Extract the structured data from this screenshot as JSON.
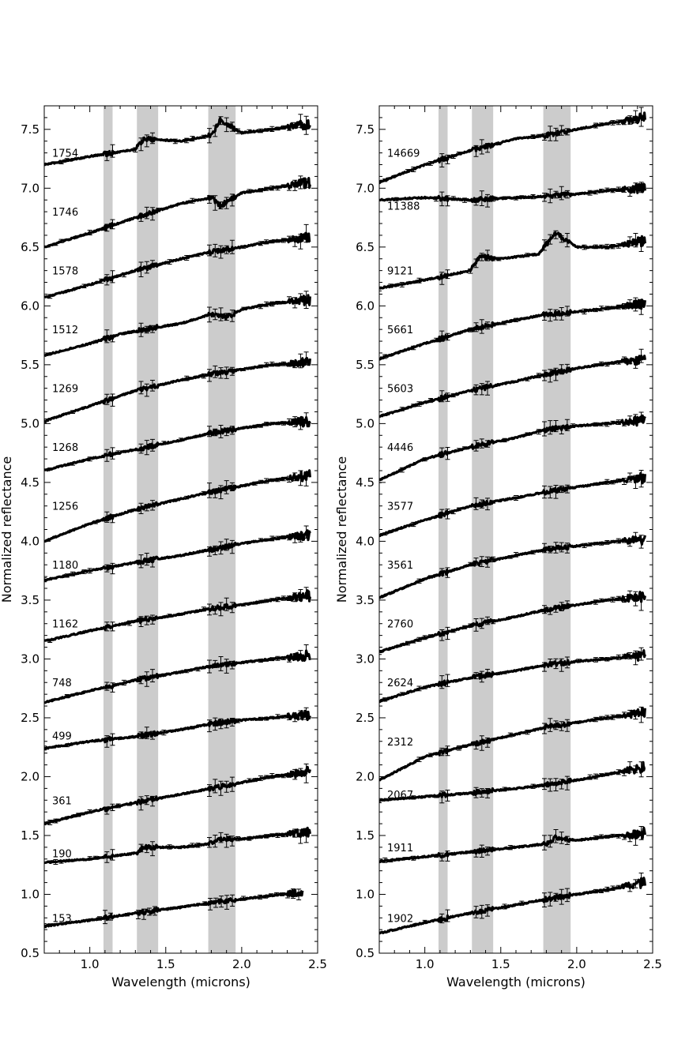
{
  "chart_data": [
    {
      "type": "line",
      "xlabel": "Wavelength (microns)",
      "ylabel": "Normalized reflectance",
      "xlim": [
        0.7,
        2.5
      ],
      "ylim": [
        0.5,
        7.7
      ],
      "xticks": [
        "1.0",
        "1.5",
        "2.0",
        "2.5"
      ],
      "yticks": [
        "0.5",
        "1.0",
        "1.5",
        "2.0",
        "2.5",
        "3.0",
        "3.5",
        "4.0",
        "4.5",
        "5.0",
        "5.5",
        "6.0",
        "6.5",
        "7.0",
        "7.5"
      ],
      "shaded_bands": [
        [
          1.09,
          1.15
        ],
        [
          1.31,
          1.45
        ],
        [
          1.78,
          1.96
        ]
      ],
      "grid": false,
      "series": [
        {
          "name": "1754",
          "label_y": 7.3,
          "x": [
            0.7,
            1.0,
            1.3,
            1.36,
            1.6,
            1.8,
            1.86,
            2.0,
            2.2,
            2.45
          ],
          "values": [
            7.2,
            7.27,
            7.33,
            7.42,
            7.4,
            7.45,
            7.58,
            7.47,
            7.5,
            7.55
          ]
        },
        {
          "name": "1746",
          "label_y": 6.8,
          "x": [
            0.7,
            1.0,
            1.3,
            1.6,
            1.8,
            1.86,
            2.0,
            2.2,
            2.45
          ],
          "values": [
            6.5,
            6.62,
            6.75,
            6.87,
            6.92,
            6.85,
            6.96,
            7.0,
            7.05
          ]
        },
        {
          "name": "1578",
          "label_y": 6.3,
          "x": [
            0.7,
            1.0,
            1.3,
            1.6,
            1.8,
            2.0,
            2.2,
            2.45
          ],
          "values": [
            6.07,
            6.18,
            6.3,
            6.4,
            6.46,
            6.5,
            6.55,
            6.58
          ]
        },
        {
          "name": "1512",
          "label_y": 5.8,
          "x": [
            0.7,
            1.0,
            1.2,
            1.36,
            1.6,
            1.8,
            1.9,
            2.0,
            2.2,
            2.45
          ],
          "values": [
            5.58,
            5.68,
            5.76,
            5.8,
            5.85,
            5.93,
            5.9,
            5.97,
            6.02,
            6.05
          ]
        },
        {
          "name": "1269",
          "label_y": 5.3,
          "x": [
            0.7,
            1.0,
            1.3,
            1.6,
            1.8,
            2.0,
            2.2,
            2.45
          ],
          "values": [
            5.02,
            5.15,
            5.28,
            5.37,
            5.42,
            5.46,
            5.5,
            5.52
          ]
        },
        {
          "name": "1268",
          "label_y": 4.8,
          "x": [
            0.7,
            1.0,
            1.3,
            1.6,
            1.8,
            2.0,
            2.2,
            2.45
          ],
          "values": [
            4.6,
            4.7,
            4.78,
            4.86,
            4.92,
            4.96,
            5.0,
            5.02
          ]
        },
        {
          "name": "1256",
          "label_y": 4.3,
          "x": [
            0.7,
            1.0,
            1.3,
            1.6,
            1.8,
            2.0,
            2.2,
            2.45
          ],
          "values": [
            4.0,
            4.15,
            4.27,
            4.36,
            4.42,
            4.47,
            4.52,
            4.56
          ]
        },
        {
          "name": "1180",
          "label_y": 3.8,
          "x": [
            0.7,
            1.0,
            1.3,
            1.6,
            1.8,
            2.0,
            2.2,
            2.45
          ],
          "values": [
            3.67,
            3.75,
            3.82,
            3.88,
            3.93,
            3.98,
            4.02,
            4.06
          ]
        },
        {
          "name": "1162",
          "label_y": 3.3,
          "x": [
            0.7,
            1.0,
            1.3,
            1.6,
            1.8,
            2.0,
            2.2,
            2.45
          ],
          "values": [
            3.15,
            3.24,
            3.32,
            3.38,
            3.43,
            3.46,
            3.5,
            3.54
          ]
        },
        {
          "name": "748",
          "label_y": 2.8,
          "x": [
            0.7,
            1.0,
            1.3,
            1.6,
            1.8,
            2.0,
            2.2,
            2.45
          ],
          "values": [
            2.63,
            2.73,
            2.82,
            2.89,
            2.94,
            2.97,
            3.0,
            3.03
          ]
        },
        {
          "name": "499",
          "label_y": 2.35,
          "x": [
            0.7,
            1.0,
            1.3,
            1.6,
            1.8,
            2.0,
            2.2,
            2.45
          ],
          "values": [
            2.24,
            2.3,
            2.34,
            2.4,
            2.45,
            2.48,
            2.5,
            2.53
          ]
        },
        {
          "name": "361",
          "label_y": 1.8,
          "x": [
            0.7,
            1.0,
            1.3,
            1.6,
            1.8,
            2.0,
            2.2,
            2.45
          ],
          "values": [
            1.6,
            1.7,
            1.78,
            1.85,
            1.9,
            1.95,
            2.0,
            2.04
          ]
        },
        {
          "name": "190",
          "label_y": 1.35,
          "x": [
            0.7,
            1.0,
            1.3,
            1.36,
            1.6,
            1.8,
            1.86,
            2.0,
            2.2,
            2.45
          ],
          "values": [
            1.27,
            1.3,
            1.35,
            1.4,
            1.4,
            1.43,
            1.47,
            1.47,
            1.5,
            1.53
          ]
        },
        {
          "name": "153",
          "label_y": 0.8,
          "x": [
            0.7,
            1.0,
            1.3,
            1.6,
            1.8,
            2.0,
            2.2,
            2.4
          ],
          "values": [
            0.73,
            0.78,
            0.84,
            0.89,
            0.93,
            0.96,
            0.99,
            1.02
          ]
        }
      ]
    },
    {
      "type": "line",
      "xlabel": "Wavelength (microns)",
      "ylabel": "Normalized reflectance",
      "xlim": [
        0.7,
        2.5
      ],
      "ylim": [
        0.5,
        7.7
      ],
      "xticks": [
        "1.0",
        "1.5",
        "2.0",
        "2.5"
      ],
      "yticks": [
        "0.5",
        "1.0",
        "1.5",
        "2.0",
        "2.5",
        "3.0",
        "3.5",
        "4.0",
        "4.5",
        "5.0",
        "5.5",
        "6.0",
        "6.5",
        "7.0",
        "7.5"
      ],
      "shaded_bands": [
        [
          1.09,
          1.15
        ],
        [
          1.31,
          1.45
        ],
        [
          1.78,
          1.96
        ]
      ],
      "grid": false,
      "series": [
        {
          "name": "14669",
          "label_y": 7.3,
          "x": [
            0.7,
            1.0,
            1.3,
            1.6,
            1.8,
            2.0,
            2.2,
            2.45
          ],
          "values": [
            7.05,
            7.2,
            7.32,
            7.42,
            7.45,
            7.5,
            7.55,
            7.6
          ]
        },
        {
          "name": "11388",
          "label_y": 6.85,
          "x": [
            0.7,
            1.0,
            1.3,
            1.6,
            1.8,
            2.0,
            2.2,
            2.45
          ],
          "values": [
            6.9,
            6.92,
            6.9,
            6.92,
            6.93,
            6.95,
            6.98,
            7.0
          ]
        },
        {
          "name": "9121",
          "label_y": 6.3,
          "x": [
            0.7,
            1.0,
            1.3,
            1.36,
            1.5,
            1.75,
            1.86,
            2.0,
            2.2,
            2.45
          ],
          "values": [
            6.15,
            6.22,
            6.3,
            6.42,
            6.4,
            6.44,
            6.62,
            6.5,
            6.5,
            6.55
          ]
        },
        {
          "name": "5661",
          "label_y": 5.8,
          "x": [
            0.7,
            1.0,
            1.3,
            1.6,
            1.8,
            2.0,
            2.2,
            2.45
          ],
          "values": [
            5.55,
            5.68,
            5.8,
            5.88,
            5.93,
            5.95,
            5.98,
            6.02
          ]
        },
        {
          "name": "5603",
          "label_y": 5.3,
          "x": [
            0.7,
            1.0,
            1.3,
            1.6,
            1.8,
            2.0,
            2.2,
            2.45
          ],
          "values": [
            5.06,
            5.18,
            5.28,
            5.36,
            5.42,
            5.47,
            5.51,
            5.55
          ]
        },
        {
          "name": "4446",
          "label_y": 4.8,
          "x": [
            0.7,
            1.0,
            1.3,
            1.6,
            1.8,
            2.0,
            2.2,
            2.45
          ],
          "values": [
            4.52,
            4.7,
            4.8,
            4.88,
            4.95,
            4.98,
            5.0,
            5.03
          ]
        },
        {
          "name": "3577",
          "label_y": 4.3,
          "x": [
            0.7,
            1.0,
            1.3,
            1.6,
            1.8,
            2.0,
            2.2,
            2.45
          ],
          "values": [
            4.05,
            4.18,
            4.3,
            4.37,
            4.42,
            4.46,
            4.5,
            4.54
          ]
        },
        {
          "name": "3561",
          "label_y": 3.8,
          "x": [
            0.7,
            1.0,
            1.3,
            1.6,
            1.8,
            2.0,
            2.2,
            2.45
          ],
          "values": [
            3.52,
            3.68,
            3.8,
            3.88,
            3.93,
            3.96,
            3.99,
            4.02
          ]
        },
        {
          "name": "2760",
          "label_y": 3.3,
          "x": [
            0.7,
            1.0,
            1.3,
            1.6,
            1.8,
            2.0,
            2.2,
            2.45
          ],
          "values": [
            3.06,
            3.18,
            3.28,
            3.36,
            3.42,
            3.46,
            3.5,
            3.53
          ]
        },
        {
          "name": "2624",
          "label_y": 2.8,
          "x": [
            0.7,
            1.0,
            1.3,
            1.6,
            1.8,
            2.0,
            2.2,
            2.45
          ],
          "values": [
            2.64,
            2.76,
            2.84,
            2.9,
            2.95,
            2.98,
            3.0,
            3.03
          ]
        },
        {
          "name": "2312",
          "label_y": 2.3,
          "x": [
            0.7,
            1.0,
            1.3,
            1.6,
            1.8,
            2.0,
            2.2,
            2.45
          ],
          "values": [
            1.97,
            2.17,
            2.27,
            2.36,
            2.42,
            2.46,
            2.5,
            2.54
          ]
        },
        {
          "name": "2067",
          "label_y": 1.85,
          "x": [
            0.7,
            1.0,
            1.3,
            1.6,
            1.8,
            2.0,
            2.2,
            2.45
          ],
          "values": [
            1.8,
            1.83,
            1.86,
            1.9,
            1.93,
            1.97,
            2.02,
            2.08
          ]
        },
        {
          "name": "1911",
          "label_y": 1.4,
          "x": [
            0.7,
            1.0,
            1.3,
            1.6,
            1.8,
            1.86,
            2.0,
            2.2,
            2.45
          ],
          "values": [
            1.28,
            1.32,
            1.36,
            1.4,
            1.43,
            1.48,
            1.46,
            1.49,
            1.52
          ]
        },
        {
          "name": "1902",
          "label_y": 0.8,
          "x": [
            0.7,
            1.0,
            1.3,
            1.6,
            1.8,
            2.0,
            2.2,
            2.45
          ],
          "values": [
            0.67,
            0.76,
            0.84,
            0.91,
            0.96,
            1.0,
            1.04,
            1.1
          ]
        }
      ]
    }
  ]
}
